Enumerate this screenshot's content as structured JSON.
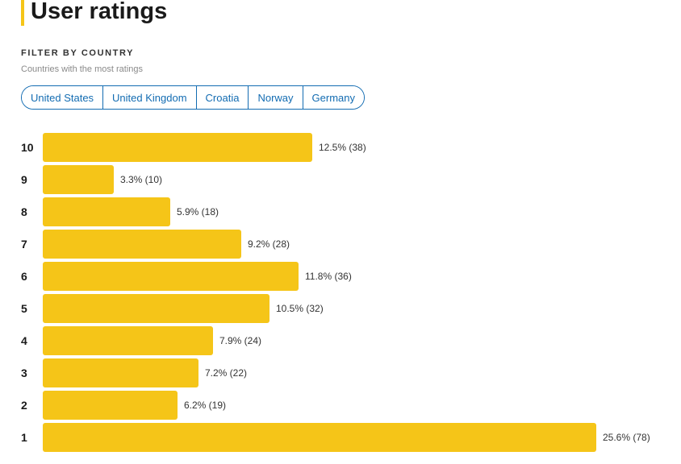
{
  "header": {
    "title": "User ratings"
  },
  "filter": {
    "heading": "FILTER BY COUNTRY",
    "subtitle": "Countries with the most ratings",
    "countries": [
      "United States",
      "United Kingdom",
      "Croatia",
      "Norway",
      "Germany"
    ]
  },
  "colors": {
    "accent": "#f5c518",
    "link": "#136cb2"
  },
  "chart_data": {
    "type": "bar",
    "orientation": "horizontal",
    "categories": [
      "10",
      "9",
      "8",
      "7",
      "6",
      "5",
      "4",
      "3",
      "2",
      "1"
    ],
    "values": [
      38,
      10,
      18,
      28,
      36,
      32,
      24,
      22,
      19,
      78
    ],
    "percents": [
      "12.5%",
      "3.3%",
      "5.9%",
      "9.2%",
      "11.8%",
      "10.5%",
      "7.9%",
      "7.2%",
      "6.2%",
      "25.6%"
    ],
    "value_labels": [
      "12.5% (38)",
      "3.3% (10)",
      "5.9% (18)",
      "9.2% (28)",
      "11.8% (36)",
      "10.5% (32)",
      "7.9% (24)",
      "7.2% (22)",
      "6.2% (19)",
      "25.6% (78)"
    ],
    "xlim": [
      0,
      78
    ],
    "grid": false,
    "legend": "none"
  }
}
